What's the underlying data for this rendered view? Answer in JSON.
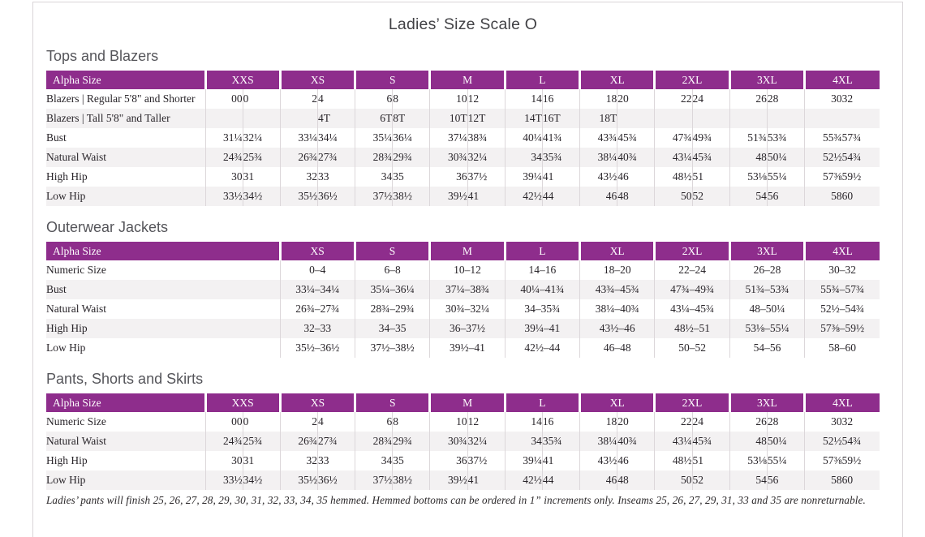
{
  "title": "Ladies’ Size Scale O",
  "footnote": "Ladies’ pants will finish 25, 26, 27, 28, 29, 30, 31, 32, 33, 34, 35 hemmed. Hemmed bottoms can be ordered in 1” increments only. Inseams 25, 26, 27, 29, 31, 33 and 35 are nonreturnable.",
  "colors": {
    "accent_purple": "#8e2d8c",
    "row_stripe": "#f3f1f2",
    "grid_rule": "#dcd7da",
    "header_text": "#ffffff",
    "page_border": "#d9d4d8"
  },
  "tables": [
    {
      "section_title": "Tops and Blazers",
      "corner_label": "Alpha Size",
      "layout": "paired",
      "sizes": [
        "XXS",
        "XS",
        "S",
        "M",
        "L",
        "XL",
        "2XL",
        "3XL",
        "4XL"
      ],
      "rows": [
        {
          "label": "Blazers | Regular 5'8\" and Shorter",
          "values": [
            "00",
            "0",
            "2",
            "4",
            "6",
            "8",
            "10",
            "12",
            "14",
            "16",
            "18",
            "20",
            "22",
            "24",
            "26",
            "28",
            "30",
            "32"
          ]
        },
        {
          "label": "Blazers | Tall 5'8\" and Taller",
          "values": [
            "",
            "",
            "",
            "4T",
            "6T",
            "8T",
            "10T",
            "12T",
            "14T",
            "16T",
            "18T",
            "",
            "",
            "",
            "",
            "",
            "",
            ""
          ]
        },
        {
          "label": "Bust",
          "values": [
            "31¼",
            "32¼",
            "33¼",
            "34¼",
            "35¼",
            "36¼",
            "37¼",
            "38¾",
            "40¼",
            "41¾",
            "43¾",
            "45¾",
            "47¾",
            "49¾",
            "51¾",
            "53¾",
            "55¾",
            "57¾"
          ]
        },
        {
          "label": "Natural Waist",
          "values": [
            "24¾",
            "25¾",
            "26¾",
            "27¾",
            "28¾",
            "29¾",
            "30¾",
            "32¼",
            "34",
            "35¾",
            "38¼",
            "40¾",
            "43¼",
            "45¾",
            "48",
            "50¼",
            "52½",
            "54¾"
          ]
        },
        {
          "label": "High Hip",
          "values": [
            "30",
            "31",
            "32",
            "33",
            "34",
            "35",
            "36",
            "37½",
            "39¼",
            "41",
            "43½",
            "46",
            "48½",
            "51",
            "53⅛",
            "55¼",
            "57⅜",
            "59½"
          ]
        },
        {
          "label": "Low Hip",
          "values": [
            "33½",
            "34½",
            "35½",
            "36½",
            "37½",
            "38½",
            "39½",
            "41",
            "42½",
            "44",
            "46",
            "48",
            "50",
            "52",
            "54",
            "56",
            "58",
            "60"
          ]
        }
      ]
    },
    {
      "section_title": "Outerwear Jackets",
      "corner_label": "Alpha Size",
      "layout": "single",
      "sizes": [
        "XS",
        "S",
        "M",
        "L",
        "XL",
        "2XL",
        "3XL",
        "4XL"
      ],
      "rows": [
        {
          "label": "Numeric Size",
          "values": [
            "0–4",
            "6–8",
            "10–12",
            "14–16",
            "18–20",
            "22–24",
            "26–28",
            "30–32"
          ]
        },
        {
          "label": "Bust",
          "values": [
            "33¼–34¼",
            "35¼–36¼",
            "37¼–38¾",
            "40¼–41¾",
            "43¾–45¾",
            "47¾–49¾",
            "51¾–53¾",
            "55¾–57¾"
          ]
        },
        {
          "label": "Natural Waist",
          "values": [
            "26¾–27¾",
            "28¾–29¾",
            "30¾–32¼",
            "34–35¾",
            "38¼–40¾",
            "43¼–45¾",
            "48–50¼",
            "52½–54¾"
          ]
        },
        {
          "label": "High Hip",
          "values": [
            "32–33",
            "34–35",
            "36–37½",
            "39¼–41",
            "43½–46",
            "48½–51",
            "53⅛–55¼",
            "57⅜–59½"
          ]
        },
        {
          "label": "Low Hip",
          "values": [
            "35½–36½",
            "37½–38½",
            "39½–41",
            "42½–44",
            "46–48",
            "50–52",
            "54–56",
            "58–60"
          ]
        }
      ]
    },
    {
      "section_title": "Pants, Shorts and Skirts",
      "corner_label": "Alpha Size",
      "layout": "paired",
      "sizes": [
        "XXS",
        "XS",
        "S",
        "M",
        "L",
        "XL",
        "2XL",
        "3XL",
        "4XL"
      ],
      "rows": [
        {
          "label": "Numeric Size",
          "values": [
            "00",
            "0",
            "2",
            "4",
            "6",
            "8",
            "10",
            "12",
            "14",
            "16",
            "18",
            "20",
            "22",
            "24",
            "26",
            "28",
            "30",
            "32"
          ]
        },
        {
          "label": "Natural Waist",
          "values": [
            "24¾",
            "25¾",
            "26¾",
            "27¾",
            "28¾",
            "29¾",
            "30¾",
            "32¼",
            "34",
            "35¾",
            "38¼",
            "40¾",
            "43¼",
            "45¾",
            "48",
            "50¼",
            "52½",
            "54¾"
          ]
        },
        {
          "label": "High Hip",
          "values": [
            "30",
            "31",
            "32",
            "33",
            "34",
            "35",
            "36",
            "37½",
            "39¼",
            "41",
            "43½",
            "46",
            "48½",
            "51",
            "53⅛",
            "55¼",
            "57⅜",
            "59½"
          ]
        },
        {
          "label": "Low Hip",
          "values": [
            "33½",
            "34½",
            "35½",
            "36½",
            "37½",
            "38½",
            "39½",
            "41",
            "42½",
            "44",
            "46",
            "48",
            "50",
            "52",
            "54",
            "56",
            "58",
            "60"
          ]
        }
      ]
    }
  ]
}
